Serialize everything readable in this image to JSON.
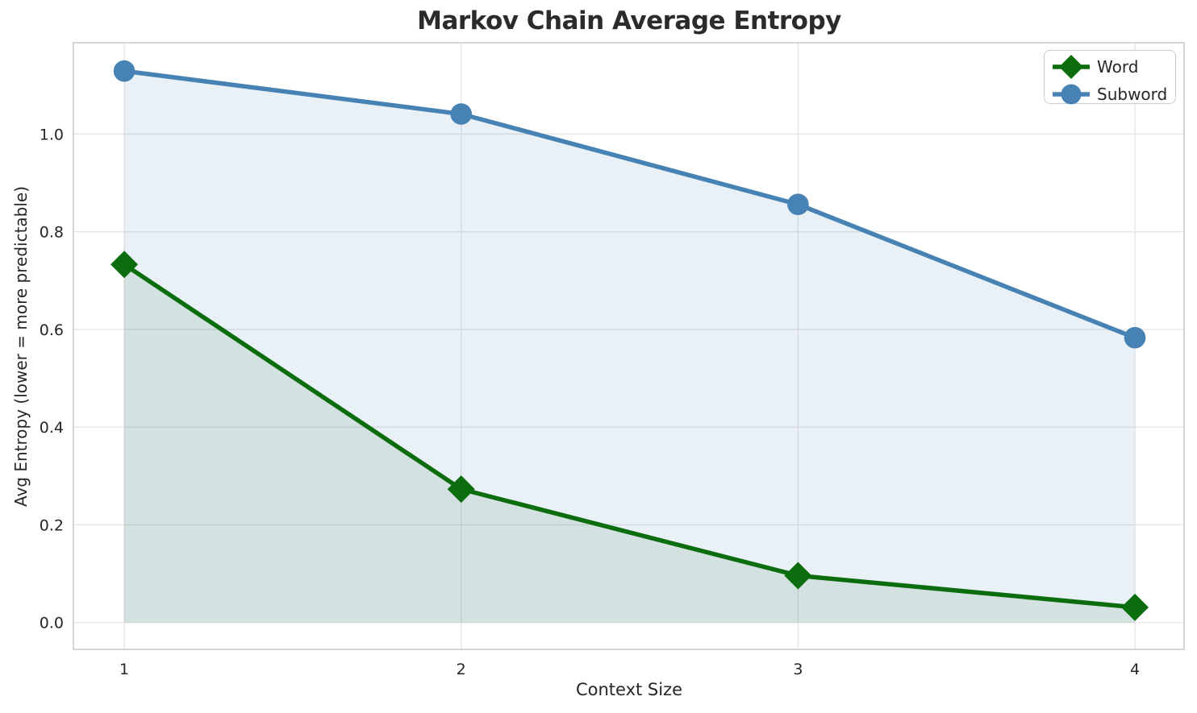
{
  "chart_data": {
    "type": "line",
    "title": "Markov Chain Average Entropy",
    "xlabel": "Context Size",
    "ylabel": "Avg Entropy (lower = more predictable)",
    "x": [
      1,
      2,
      3,
      4
    ],
    "xticks": [
      "1",
      "2",
      "3",
      "4"
    ],
    "yticks": [
      "0.0",
      "0.2",
      "0.4",
      "0.6",
      "0.8",
      "1.0"
    ],
    "xlim": [
      0.849,
      4.146
    ],
    "ylim": [
      -0.055,
      1.187
    ],
    "grid": true,
    "legend_position": "upper right",
    "fill_baseline": 0,
    "series": [
      {
        "name": "Word",
        "values": [
          0.733,
          0.273,
          0.096,
          0.031
        ],
        "color": "#0b6d0d",
        "marker": "diamond",
        "fill_opacity": 0.1
      },
      {
        "name": "Subword",
        "values": [
          1.129,
          1.041,
          0.856,
          0.583
        ],
        "color": "#4682b4",
        "marker": "circle",
        "fill_opacity": 0.12
      }
    ],
    "colors": {
      "grid": "#e6e6e6",
      "spine": "#cbcbcb",
      "text": "#262626",
      "title": "#2b2b2b",
      "legend_border": "#cccccc",
      "background": "#ffffff"
    }
  }
}
